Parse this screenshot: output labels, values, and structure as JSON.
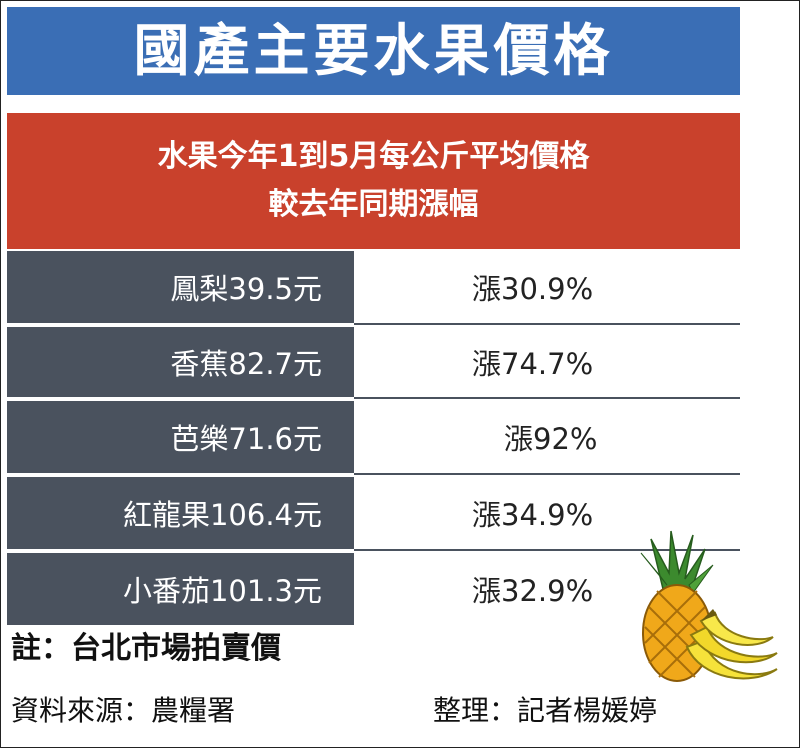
{
  "title": "國產主要水果價格",
  "subtitle": {
    "line1": "水果今年1到5月每公斤平均價格",
    "line2": "較去年同期漲幅"
  },
  "rows": [
    {
      "fruit_price": "鳳梨39.5元",
      "change": "漲30.9%"
    },
    {
      "fruit_price": "香蕉82.7元",
      "change": "漲74.7%"
    },
    {
      "fruit_price": "芭樂71.6元",
      "change": "漲92%"
    },
    {
      "fruit_price": "紅龍果106.4元",
      "change": "漲34.9%"
    },
    {
      "fruit_price": "小番茄101.3元",
      "change": "漲32.9%"
    }
  ],
  "note": "註：台北市場拍賣價",
  "source": "資料來源：農糧署",
  "editor": "整理：記者楊媛婷",
  "colors": {
    "title_bg": "#3a6eb5",
    "subtitle_bg": "#c9412c",
    "row_bg": "#4a525e"
  },
  "illustration": [
    "pineapple-icon",
    "banana-icon"
  ]
}
